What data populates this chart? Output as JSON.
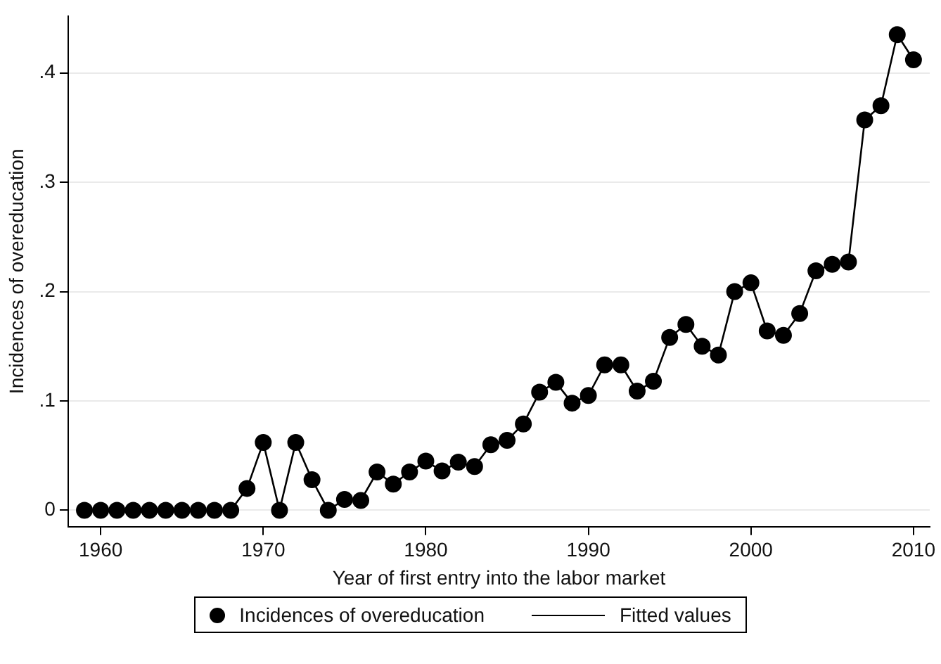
{
  "chart_data": {
    "type": "scatter",
    "xlabel": "Year of first entry into the labor market",
    "ylabel": "Incidences of overeducation",
    "x": [
      1959,
      1960,
      1961,
      1962,
      1963,
      1964,
      1965,
      1966,
      1967,
      1968,
      1969,
      1970,
      1971,
      1972,
      1973,
      1974,
      1975,
      1976,
      1977,
      1978,
      1979,
      1980,
      1981,
      1982,
      1983,
      1984,
      1985,
      1986,
      1987,
      1988,
      1989,
      1990,
      1991,
      1992,
      1993,
      1994,
      1995,
      1996,
      1997,
      1998,
      1999,
      2000,
      2001,
      2002,
      2003,
      2004,
      2005,
      2006,
      2007,
      2008,
      2009,
      2010
    ],
    "series": [
      {
        "name": "Incidences of overeducation",
        "color": "#000000",
        "marker": "circle",
        "values": [
          0,
          0,
          0,
          0,
          0,
          0,
          0,
          0,
          0,
          0,
          0.02,
          0.062,
          0,
          0.062,
          0.028,
          0,
          0.01,
          0.009,
          0.035,
          0.024,
          0.035,
          0.045,
          0.036,
          0.044,
          0.04,
          0.06,
          0.064,
          0.079,
          0.108,
          0.117,
          0.098,
          0.105,
          0.133,
          0.133,
          0.109,
          0.118,
          0.158,
          0.17,
          0.15,
          0.142,
          0.2,
          0.208,
          0.164,
          0.16,
          0.18,
          0.219,
          0.225,
          0.227,
          0.357,
          0.37,
          0.435,
          0.412
        ]
      },
      {
        "name": "Fitted values",
        "type": "line",
        "color": "#000000",
        "marker": "none",
        "line_style": "solid",
        "values": [
          0,
          0,
          0,
          0,
          0,
          0,
          0,
          0,
          0,
          0,
          0.02,
          0.062,
          0,
          0.062,
          0.028,
          0,
          0.01,
          0.009,
          0.035,
          0.024,
          0.035,
          0.045,
          0.036,
          0.044,
          0.04,
          0.06,
          0.064,
          0.079,
          0.108,
          0.117,
          0.098,
          0.105,
          0.133,
          0.133,
          0.109,
          0.118,
          0.158,
          0.17,
          0.15,
          0.142,
          0.2,
          0.208,
          0.164,
          0.16,
          0.18,
          0.219,
          0.225,
          0.227,
          0.357,
          0.37,
          0.435,
          0.412
        ]
      }
    ],
    "xlim": [
      1958,
      2011
    ],
    "xticks": [
      1960,
      1970,
      1980,
      1990,
      2000,
      2010
    ],
    "ylim": [
      -0.015,
      0.452
    ],
    "yticks": [
      {
        "value": 0,
        "label": "0"
      },
      {
        "value": 0.1,
        "label": ".1"
      },
      {
        "value": 0.2,
        "label": ".2"
      },
      {
        "value": 0.3,
        "label": ".3"
      },
      {
        "value": 0.4,
        "label": ".4"
      }
    ],
    "grid": "y",
    "legend": "bottom"
  }
}
